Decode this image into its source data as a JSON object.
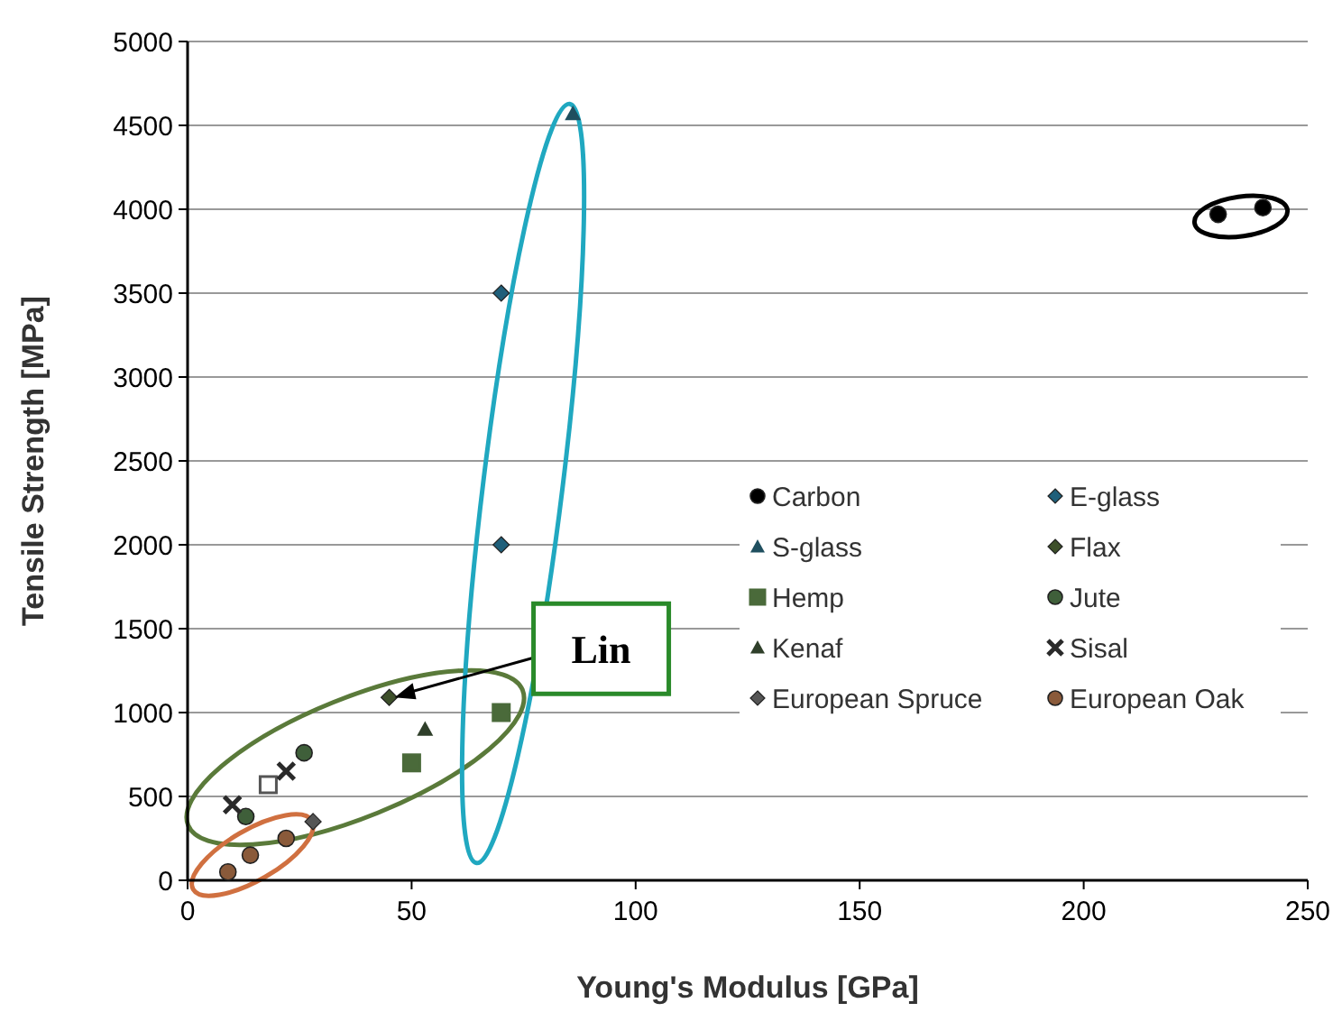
{
  "chart_data": {
    "type": "scatter",
    "xlabel": "Young's Modulus [GPa]",
    "ylabel": "Tensile Strength [MPa]",
    "xlim": [
      0,
      250
    ],
    "xticks": [
      0,
      50,
      100,
      150,
      200,
      250
    ],
    "ylim": [
      0,
      5000
    ],
    "yticks": [
      0,
      500,
      1000,
      1500,
      2000,
      2500,
      3000,
      3500,
      4000,
      4500,
      5000
    ],
    "grid": "y",
    "legend": "bottom right",
    "annotations": [
      {
        "text": "Lin",
        "x": 45,
        "y": 1090
      }
    ],
    "series": [
      {
        "name": "Carbon",
        "color": "#000000",
        "marker": "circle",
        "x": [
          230,
          240
        ],
        "values": [
          3970,
          4010
        ]
      },
      {
        "name": "E-glass",
        "color": "#1f5f7a",
        "marker": "diamond",
        "x": [
          70,
          70
        ],
        "values": [
          3500,
          2000
        ]
      },
      {
        "name": "S-glass",
        "color": "#1f4f5f",
        "marker": "triangle",
        "x": [
          86
        ],
        "values": [
          4570
        ]
      },
      {
        "color": "#555555",
        "marker": "square",
        "x": [
          18
        ],
        "values": [
          570
        ]
      },
      {
        "name": "Flax",
        "color": "#3d4f2a",
        "marker": "diamond",
        "x": [
          45
        ],
        "values": [
          1090
        ]
      },
      {
        "name": "Hemp",
        "color": "#4a6a3a",
        "marker": "square",
        "x": [
          70,
          50
        ],
        "values": [
          1000,
          700
        ]
      },
      {
        "name": "Jute",
        "color": "#3f5f3a",
        "marker": "circle",
        "x": [
          26,
          13
        ],
        "values": [
          760,
          380
        ]
      },
      {
        "name": "Kenaf",
        "color": "#2f3f2a",
        "marker": "triangle",
        "x": [
          53
        ],
        "values": [
          900
        ]
      },
      {
        "name": "Sisal",
        "color": "#2a2a2a",
        "marker": "cross",
        "x": [
          22,
          10
        ],
        "values": [
          650,
          450
        ]
      },
      {
        "name": "European Spruce",
        "color": "#555555",
        "marker": "diamond",
        "x": [
          28
        ],
        "values": [
          350
        ]
      },
      {
        "name": "European Oak",
        "color": "#8a5a3a",
        "marker": "circle",
        "x": [
          9,
          14,
          22
        ],
        "values": [
          50,
          150,
          250
        ]
      }
    ]
  }
}
